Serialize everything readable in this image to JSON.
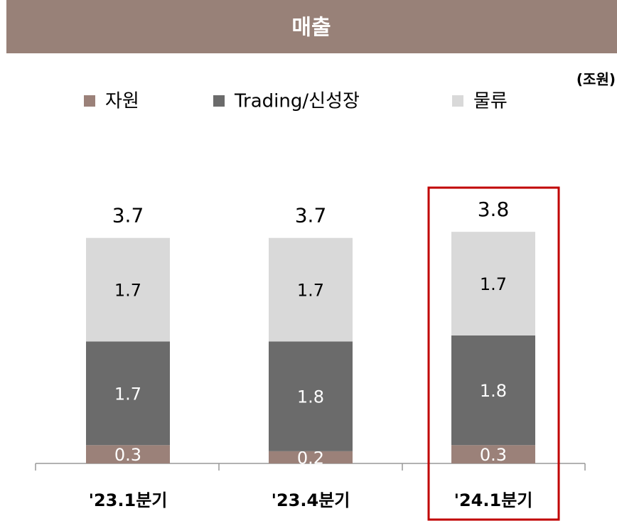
{
  "chart_data": {
    "type": "stacked_bar",
    "title": "매출",
    "unit": "(조원)",
    "categories": [
      "'23.1분기",
      "'23.4분기",
      "'24.1분기"
    ],
    "series": [
      {
        "name": "자원",
        "color": "#9b8179",
        "values": [
          0.3,
          0.2,
          0.3
        ]
      },
      {
        "name": "Trading/신성장",
        "color": "#6b6b6b",
        "values": [
          1.7,
          1.8,
          1.8
        ]
      },
      {
        "name": "물류",
        "color": "#d9d9d9",
        "values": [
          1.7,
          1.7,
          1.7
        ]
      }
    ],
    "totals": [
      3.7,
      3.7,
      3.8
    ],
    "ylim": [
      0,
      4
    ],
    "legend": "top"
  }
}
